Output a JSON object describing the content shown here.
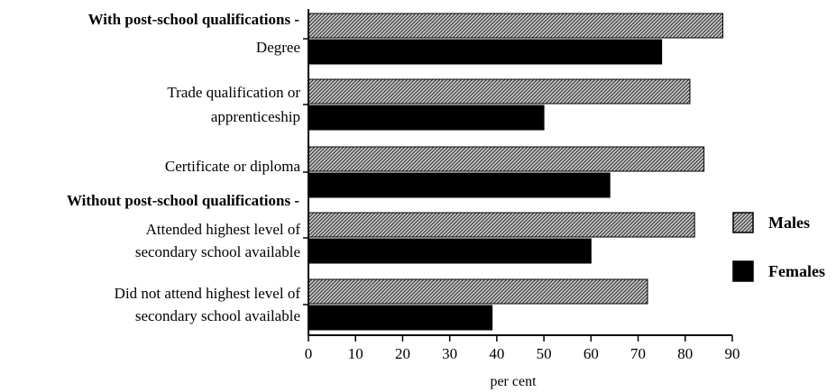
{
  "chart_data": {
    "type": "bar",
    "orientation": "horizontal",
    "group_labels": [
      "With post-school qualifications -",
      "Without post-school qualifications -"
    ],
    "categories": [
      [
        "Degree"
      ],
      [
        "Trade qualification or",
        "apprenticeship"
      ],
      [
        "Certificate or diploma"
      ],
      [
        "Attended highest level of",
        "secondary school available"
      ],
      [
        "Did not attend highest level of",
        "secondary school available"
      ]
    ],
    "series": [
      {
        "name": "Males",
        "values": [
          88,
          81,
          84,
          82,
          72
        ]
      },
      {
        "name": "Females",
        "values": [
          75,
          50,
          64,
          60,
          39
        ]
      }
    ],
    "xlabel": "per cent",
    "xlim": [
      0,
      90
    ],
    "xticks": [
      0,
      10,
      20,
      30,
      40,
      50,
      60,
      70,
      80,
      90
    ],
    "grid": false,
    "legend_position": "right",
    "colors": {
      "Males": "#a9a9a9",
      "Females": "#000000"
    }
  }
}
